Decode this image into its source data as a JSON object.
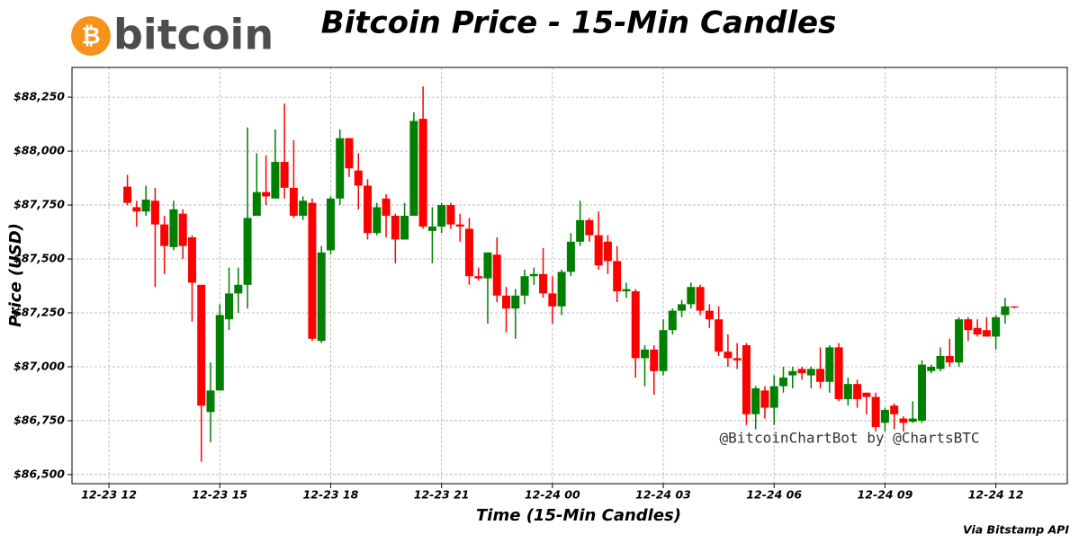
{
  "chart_data": {
    "type": "candlestick",
    "title": "Bitcoin Price - 15-Min Candles",
    "logo_symbol": "₿",
    "logo": "bitcoin",
    "y_label": "Price (USD)",
    "x_label": "Time (15-Min Candles)",
    "watermark": "@BitcoinChartBot by @ChartsBTC",
    "source": "Via Bitstamp API",
    "up_color": "#008000",
    "down_color": "#ff0000",
    "grid": true,
    "xlim": [
      "12-23 11:00",
      "12-24 13:56"
    ],
    "xticks": [
      "12-23 12",
      "12-23 15",
      "12-23 18",
      "12-23 21",
      "12-24 00",
      "12-24 03",
      "12-24 06",
      "12-24 09",
      "12-24 12"
    ],
    "ylim": [
      86458,
      88388
    ],
    "yticks": [
      {
        "value": 86500,
        "label": "$86,500"
      },
      {
        "value": 86750,
        "label": "$86,750"
      },
      {
        "value": 87000,
        "label": "$87,000"
      },
      {
        "value": 87250,
        "label": "$87,250"
      },
      {
        "value": 87500,
        "label": "$87,500"
      },
      {
        "value": 87750,
        "label": "$87,750"
      },
      {
        "value": 88000,
        "label": "$88,000"
      },
      {
        "value": 88250,
        "label": "$88,250"
      }
    ],
    "x": [
      "12-23 12:30",
      "12-23 12:45",
      "12-23 13:00",
      "12-23 13:15",
      "12-23 13:30",
      "12-23 13:45",
      "12-23 14:00",
      "12-23 14:15",
      "12-23 14:30",
      "12-23 14:45",
      "12-23 15:00",
      "12-23 15:15",
      "12-23 15:30",
      "12-23 15:45",
      "12-23 16:00",
      "12-23 16:15",
      "12-23 16:30",
      "12-23 16:45",
      "12-23 17:00",
      "12-23 17:15",
      "12-23 17:30",
      "12-23 17:45",
      "12-23 18:00",
      "12-23 18:15",
      "12-23 18:30",
      "12-23 18:45",
      "12-23 19:00",
      "12-23 19:15",
      "12-23 19:30",
      "12-23 19:45",
      "12-23 20:00",
      "12-23 20:15",
      "12-23 20:30",
      "12-23 20:45",
      "12-23 21:00",
      "12-23 21:15",
      "12-23 21:30",
      "12-23 21:45",
      "12-23 22:00",
      "12-23 22:15",
      "12-23 22:30",
      "12-23 22:45",
      "12-23 23:00",
      "12-23 23:15",
      "12-23 23:30",
      "12-23 23:45",
      "12-24 00:00",
      "12-24 00:15",
      "12-24 00:30",
      "12-24 00:45",
      "12-24 01:00",
      "12-24 01:15",
      "12-24 01:30",
      "12-24 01:45",
      "12-24 02:00",
      "12-24 02:15",
      "12-24 02:30",
      "12-24 02:45",
      "12-24 03:00",
      "12-24 03:15",
      "12-24 03:30",
      "12-24 03:45",
      "12-24 04:00",
      "12-24 04:15",
      "12-24 04:30",
      "12-24 04:45",
      "12-24 05:00",
      "12-24 05:15",
      "12-24 05:30",
      "12-24 05:45",
      "12-24 06:00",
      "12-24 06:15",
      "12-24 06:30",
      "12-24 06:45",
      "12-24 07:00",
      "12-24 07:15",
      "12-24 07:30",
      "12-24 07:45",
      "12-24 08:00",
      "12-24 08:15",
      "12-24 08:30",
      "12-24 08:45",
      "12-24 09:00",
      "12-24 09:15",
      "12-24 09:30",
      "12-24 09:45",
      "12-24 10:00",
      "12-24 10:15",
      "12-24 10:30",
      "12-24 10:45",
      "12-24 11:00",
      "12-24 11:15",
      "12-24 11:30",
      "12-24 11:45",
      "12-24 12:00",
      "12-24 12:15",
      "12-24 12:30"
    ],
    "open": [
      87835,
      87740,
      87720,
      87770,
      87660,
      87555,
      87710,
      87600,
      87380,
      86790,
      86890,
      87220,
      87340,
      87380,
      87700,
      87810,
      87780,
      87950,
      87830,
      87700,
      87760,
      87120,
      87540,
      87780,
      88060,
      87910,
      87840,
      87620,
      87780,
      87700,
      87590,
      87700,
      88150,
      87630,
      87650,
      87750,
      87660,
      87640,
      87420,
      87410,
      87520,
      87330,
      87270,
      87330,
      87420,
      87430,
      87340,
      87280,
      87440,
      87580,
      87680,
      87610,
      87580,
      87490,
      87350,
      87350,
      87040,
      87080,
      86980,
      87170,
      87260,
      87290,
      87370,
      87260,
      87220,
      87070,
      87040,
      87100,
      86780,
      86890,
      86810,
      86910,
      86960,
      86990,
      86960,
      86990,
      86930,
      87090,
      86850,
      86920,
      86880,
      86860,
      86740,
      86820,
      86760,
      86745,
      86750,
      86980,
      86990,
      87050,
      87020,
      87220,
      87180,
      87170,
      87140,
      87240,
      87280
    ],
    "high": [
      87890,
      87770,
      87840,
      87830,
      87700,
      87770,
      87730,
      87610,
      87380,
      87020,
      87290,
      87460,
      87460,
      88110,
      87990,
      87980,
      88100,
      88220,
      88050,
      87790,
      87780,
      87560,
      87790,
      88100,
      88060,
      87990,
      87870,
      87760,
      87800,
      87710,
      87760,
      88180,
      88300,
      87740,
      87760,
      87760,
      87710,
      87690,
      87460,
      87530,
      87600,
      87370,
      87360,
      87450,
      87460,
      87550,
      87420,
      87450,
      87620,
      87770,
      87690,
      87720,
      87610,
      87560,
      87390,
      87360,
      87100,
      87100,
      87220,
      87270,
      87310,
      87390,
      87380,
      87290,
      87280,
      87150,
      87110,
      87110,
      86910,
      86910,
      86960,
      87000,
      87000,
      87000,
      87000,
      87090,
      87100,
      87110,
      86950,
      86940,
      86880,
      86880,
      86810,
      86830,
      86770,
      86840,
      87030,
      87010,
      87090,
      87130,
      87230,
      87230,
      87220,
      87230,
      87240,
      87320,
      87280
    ],
    "low": [
      87750,
      87650,
      87700,
      87370,
      87430,
      87540,
      87500,
      87210,
      86560,
      86650,
      86890,
      87170,
      87250,
      87270,
      87700,
      87750,
      87790,
      87780,
      87690,
      87680,
      87120,
      87110,
      87520,
      87750,
      87880,
      87730,
      87590,
      87610,
      87600,
      87480,
      87590,
      87700,
      87640,
      87480,
      87620,
      87640,
      87580,
      87380,
      87400,
      87200,
      87300,
      87160,
      87130,
      87290,
      87380,
      87320,
      87200,
      87240,
      87420,
      87560,
      87580,
      87450,
      87430,
      87300,
      87320,
      86950,
      86910,
      86870,
      86960,
      87150,
      87230,
      87270,
      87240,
      87180,
      87050,
      87000,
      86990,
      86730,
      86710,
      86760,
      86730,
      86880,
      86900,
      86940,
      86900,
      86900,
      86880,
      86840,
      86820,
      86810,
      86780,
      86700,
      86700,
      86710,
      86700,
      86740,
      86740,
      86970,
      86980,
      87000,
      87000,
      87120,
      87140,
      87140,
      87080,
      87200,
      87270
    ],
    "close": [
      87760,
      87720,
      87775,
      87660,
      87560,
      87730,
      87560,
      87390,
      86820,
      86890,
      87240,
      87340,
      87380,
      87690,
      87810,
      87790,
      87950,
      87830,
      87700,
      87770,
      87130,
      87530,
      87780,
      88060,
      87920,
      87840,
      87620,
      87740,
      87700,
      87590,
      87700,
      88140,
      87650,
      87650,
      87750,
      87660,
      87650,
      87420,
      87410,
      87530,
      87330,
      87270,
      87330,
      87420,
      87430,
      87340,
      87280,
      87440,
      87580,
      87680,
      87610,
      87470,
      87490,
      87350,
      87360,
      87040,
      87080,
      86980,
      87170,
      87260,
      87290,
      87370,
      87260,
      87220,
      87070,
      87040,
      87030,
      86780,
      86900,
      86810,
      86910,
      86950,
      86980,
      86970,
      86990,
      86930,
      87090,
      86850,
      86920,
      86850,
      86860,
      86720,
      86800,
      86780,
      86740,
      86760,
      87010,
      87000,
      87050,
      87020,
      87220,
      87170,
      87150,
      87140,
      87230,
      87280,
      87275
    ]
  }
}
